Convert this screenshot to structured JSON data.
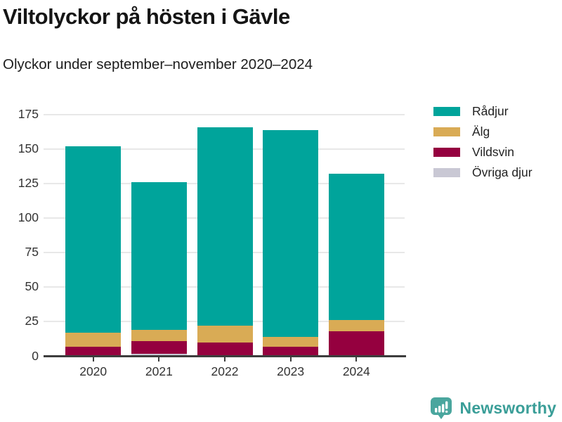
{
  "header": {
    "title": "Viltolyckor på hösten i Gävle",
    "subtitle": "Olyckor under september–november 2020–2024"
  },
  "colors": {
    "radjur": "#00a49b",
    "alg": "#d9ab55",
    "vildsvin": "#95003f",
    "ovriga": "#c9c8d4",
    "axis": "#3d3d3d",
    "grid": "#e8e8e8",
    "tick_text": "#333333",
    "title_text": "#151515",
    "brand": "#3a9e98",
    "brand_icon": "#4aa69e"
  },
  "chart_data": {
    "type": "bar",
    "stacked": true,
    "title": "Viltolyckor på hösten i Gävle",
    "subtitle": "Olyckor under september–november 2020–2024",
    "categories": [
      "2020",
      "2021",
      "2022",
      "2023",
      "2024"
    ],
    "series": [
      {
        "name": "Rådjur",
        "color_key": "radjur",
        "values": [
          135,
          107,
          144,
          150,
          106
        ]
      },
      {
        "name": "Älg",
        "color_key": "alg",
        "values": [
          10,
          8,
          12,
          7,
          8
        ]
      },
      {
        "name": "Vildsvin",
        "color_key": "vildsvin",
        "values": [
          7,
          9,
          10,
          7,
          18
        ]
      },
      {
        "name": "Övriga djur",
        "color_key": "ovriga",
        "values": [
          0,
          2,
          0,
          0,
          0
        ]
      }
    ],
    "totals": [
      152,
      126,
      166,
      164,
      132
    ],
    "y_ticks": [
      0,
      25,
      50,
      75,
      100,
      125,
      150,
      175
    ],
    "ylim": [
      0,
      175
    ],
    "xlabel": "",
    "ylabel": "",
    "grid": true,
    "legend_position": "right"
  },
  "legend": {
    "items": [
      "Rådjur",
      "Älg",
      "Vildsvin",
      "Övriga djur"
    ]
  },
  "footer": {
    "brand": "Newsworthy"
  }
}
